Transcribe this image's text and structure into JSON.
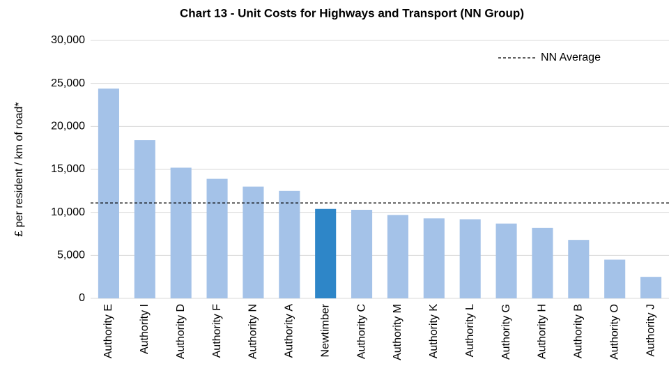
{
  "chart_data": {
    "type": "bar",
    "title": "Chart 13 - Unit Costs for Highways and Transport (NN Group)",
    "ylabel": "£ per resident / km of road*",
    "categories": [
      "Authority E",
      "Authority I",
      "Authority D",
      "Authority F",
      "Authority N",
      "Authority A",
      "Newtimber",
      "Authority C",
      "Authority M",
      "Authority K",
      "Authority L",
      "Authority G",
      "Authority H",
      "Authority B",
      "Authority O",
      "Authority J"
    ],
    "values": [
      24400,
      18400,
      15200,
      13900,
      13000,
      12500,
      10400,
      10300,
      9700,
      9300,
      9200,
      8700,
      8200,
      6800,
      4500,
      2500
    ],
    "colors": [
      "#a4c2e8",
      "#a4c2e8",
      "#a4c2e8",
      "#a4c2e8",
      "#a4c2e8",
      "#a4c2e8",
      "#2e86c8",
      "#a4c2e8",
      "#a4c2e8",
      "#a4c2e8",
      "#a4c2e8",
      "#a4c2e8",
      "#a4c2e8",
      "#a4c2e8",
      "#a4c2e8",
      "#a4c2e8"
    ],
    "reference_line": {
      "name": "NN Average",
      "value": 11100
    },
    "ylim": [
      0,
      30000
    ],
    "yticks": [
      0,
      {
        "value": 5000,
        "label": "5,000"
      },
      {
        "value": 10000,
        "label": "10,000"
      },
      {
        "value": 15000,
        "label": "15,000"
      },
      {
        "value": 20000,
        "label": "20,000"
      },
      {
        "value": 25000,
        "label": "25,000"
      },
      {
        "value": 30000,
        "label": "30,000"
      }
    ],
    "grid": true
  }
}
